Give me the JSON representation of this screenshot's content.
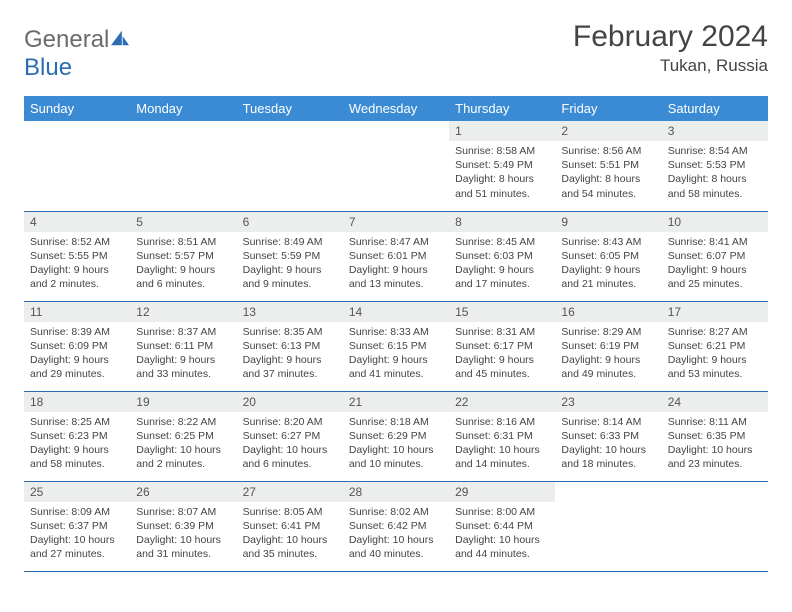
{
  "brand": {
    "name_a": "General",
    "name_b": "Blue"
  },
  "title": "February 2024",
  "location": "Tukan, Russia",
  "colors": {
    "header_bg": "#3b8bd4",
    "header_text": "#ffffff",
    "daynum_bg": "#eceded",
    "rule": "#2a6db3",
    "text": "#444444",
    "brand_gray": "#6b6b6b",
    "brand_blue": "#2a6db3"
  },
  "weekdays": [
    "Sunday",
    "Monday",
    "Tuesday",
    "Wednesday",
    "Thursday",
    "Friday",
    "Saturday"
  ],
  "weeks": [
    [
      null,
      null,
      null,
      null,
      {
        "n": "1",
        "sunrise": "8:58 AM",
        "sunset": "5:49 PM",
        "daylight": "8 hours and 51 minutes."
      },
      {
        "n": "2",
        "sunrise": "8:56 AM",
        "sunset": "5:51 PM",
        "daylight": "8 hours and 54 minutes."
      },
      {
        "n": "3",
        "sunrise": "8:54 AM",
        "sunset": "5:53 PM",
        "daylight": "8 hours and 58 minutes."
      }
    ],
    [
      {
        "n": "4",
        "sunrise": "8:52 AM",
        "sunset": "5:55 PM",
        "daylight": "9 hours and 2 minutes."
      },
      {
        "n": "5",
        "sunrise": "8:51 AM",
        "sunset": "5:57 PM",
        "daylight": "9 hours and 6 minutes."
      },
      {
        "n": "6",
        "sunrise": "8:49 AM",
        "sunset": "5:59 PM",
        "daylight": "9 hours and 9 minutes."
      },
      {
        "n": "7",
        "sunrise": "8:47 AM",
        "sunset": "6:01 PM",
        "daylight": "9 hours and 13 minutes."
      },
      {
        "n": "8",
        "sunrise": "8:45 AM",
        "sunset": "6:03 PM",
        "daylight": "9 hours and 17 minutes."
      },
      {
        "n": "9",
        "sunrise": "8:43 AM",
        "sunset": "6:05 PM",
        "daylight": "9 hours and 21 minutes."
      },
      {
        "n": "10",
        "sunrise": "8:41 AM",
        "sunset": "6:07 PM",
        "daylight": "9 hours and 25 minutes."
      }
    ],
    [
      {
        "n": "11",
        "sunrise": "8:39 AM",
        "sunset": "6:09 PM",
        "daylight": "9 hours and 29 minutes."
      },
      {
        "n": "12",
        "sunrise": "8:37 AM",
        "sunset": "6:11 PM",
        "daylight": "9 hours and 33 minutes."
      },
      {
        "n": "13",
        "sunrise": "8:35 AM",
        "sunset": "6:13 PM",
        "daylight": "9 hours and 37 minutes."
      },
      {
        "n": "14",
        "sunrise": "8:33 AM",
        "sunset": "6:15 PM",
        "daylight": "9 hours and 41 minutes."
      },
      {
        "n": "15",
        "sunrise": "8:31 AM",
        "sunset": "6:17 PM",
        "daylight": "9 hours and 45 minutes."
      },
      {
        "n": "16",
        "sunrise": "8:29 AM",
        "sunset": "6:19 PM",
        "daylight": "9 hours and 49 minutes."
      },
      {
        "n": "17",
        "sunrise": "8:27 AM",
        "sunset": "6:21 PM",
        "daylight": "9 hours and 53 minutes."
      }
    ],
    [
      {
        "n": "18",
        "sunrise": "8:25 AM",
        "sunset": "6:23 PM",
        "daylight": "9 hours and 58 minutes."
      },
      {
        "n": "19",
        "sunrise": "8:22 AM",
        "sunset": "6:25 PM",
        "daylight": "10 hours and 2 minutes."
      },
      {
        "n": "20",
        "sunrise": "8:20 AM",
        "sunset": "6:27 PM",
        "daylight": "10 hours and 6 minutes."
      },
      {
        "n": "21",
        "sunrise": "8:18 AM",
        "sunset": "6:29 PM",
        "daylight": "10 hours and 10 minutes."
      },
      {
        "n": "22",
        "sunrise": "8:16 AM",
        "sunset": "6:31 PM",
        "daylight": "10 hours and 14 minutes."
      },
      {
        "n": "23",
        "sunrise": "8:14 AM",
        "sunset": "6:33 PM",
        "daylight": "10 hours and 18 minutes."
      },
      {
        "n": "24",
        "sunrise": "8:11 AM",
        "sunset": "6:35 PM",
        "daylight": "10 hours and 23 minutes."
      }
    ],
    [
      {
        "n": "25",
        "sunrise": "8:09 AM",
        "sunset": "6:37 PM",
        "daylight": "10 hours and 27 minutes."
      },
      {
        "n": "26",
        "sunrise": "8:07 AM",
        "sunset": "6:39 PM",
        "daylight": "10 hours and 31 minutes."
      },
      {
        "n": "27",
        "sunrise": "8:05 AM",
        "sunset": "6:41 PM",
        "daylight": "10 hours and 35 minutes."
      },
      {
        "n": "28",
        "sunrise": "8:02 AM",
        "sunset": "6:42 PM",
        "daylight": "10 hours and 40 minutes."
      },
      {
        "n": "29",
        "sunrise": "8:00 AM",
        "sunset": "6:44 PM",
        "daylight": "10 hours and 44 minutes."
      },
      null,
      null
    ]
  ],
  "labels": {
    "sunrise": "Sunrise:",
    "sunset": "Sunset:",
    "daylight": "Daylight:"
  }
}
